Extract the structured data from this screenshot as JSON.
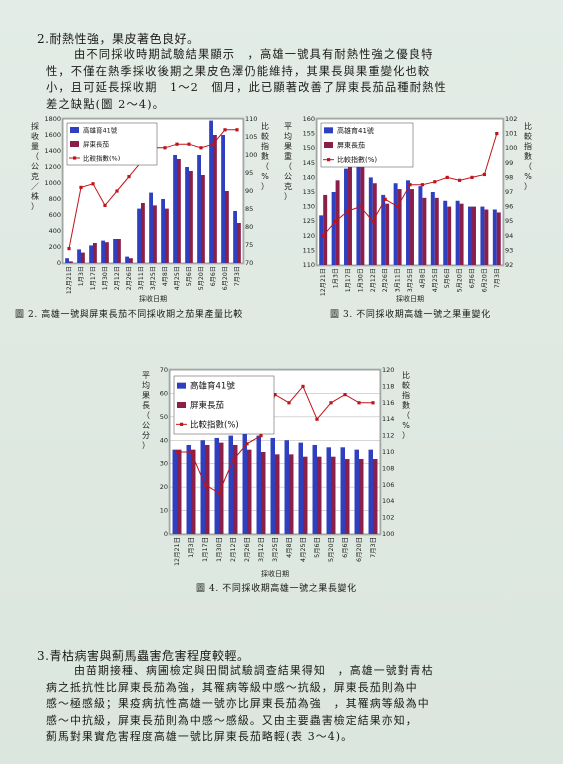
{
  "section1": {
    "heading": "2.耐熱性強，果皮著色良好。",
    "lines": [
      "由不同採收時期試驗結果顯示　，高雄一號具有耐熱性強之優良特",
      "性，不僅在熱季採收後期之果皮色澤仍能維持，其果長與果重變化也較",
      "小，且可延長採收期　1～2　個月，此已顯著改善了屏東長茄品種耐熱性",
      "差之缺點(圖 2～4)。"
    ]
  },
  "captions": {
    "fig2": "圖 2. 高雄一號與屏東長茄不同採收期之茄果產量比較",
    "fig3": "圖 3.  不同採收期高雄一號之果重變化",
    "fig4": "圖 4.  不同採收期高雄一號之果長變化"
  },
  "section2": {
    "heading": "3.青枯病害與薊馬蟲害危害程度較輕。",
    "lines": [
      "由苗期接種、病圃檢定與田間試驗調查結果得知　，高雄一號對青枯",
      "病之抵抗性比屏東長茄為強，其罹病等級中感～抗級，屏東長茄則為中",
      "感～極感級；果疫病抗性高雄一號亦比屏東長茄為強　，其罹病等級為中",
      "感～中抗級，屏東長茄則為中感～感級。又由主要蟲害檢定結果亦知，",
      "薊馬對果實危害程度高雄一號比屏東長茄略輕(表 3～4)。"
    ]
  },
  "colors": {
    "kaohsiung": "#2e3fbf",
    "pingtung": "#8a1f4a",
    "index": "#c0141a",
    "frame": "#c9d3cc"
  },
  "chart_data": [
    {
      "type": "bar",
      "id": "fig2",
      "categories": [
        "12月21日",
        "1月3日",
        "1月17日",
        "1月30日",
        "2月12日",
        "2月26日",
        "3月11日",
        "3月25日",
        "4月8日",
        "4月25日",
        "5月6日",
        "5月20日",
        "6月6日",
        "6月20日",
        "7月3日"
      ],
      "series": [
        {
          "name": "高雄育41號",
          "values": [
            60,
            170,
            220,
            280,
            300,
            80,
            680,
            880,
            800,
            1350,
            1200,
            1350,
            1780,
            1600,
            650
          ]
        },
        {
          "name": "屏東長茄",
          "values": [
            20,
            130,
            250,
            260,
            300,
            60,
            750,
            720,
            680,
            1300,
            1150,
            1100,
            1600,
            900,
            500
          ]
        },
        {
          "name": "比較指數(%)",
          "values": [
            74,
            91,
            92,
            86,
            90,
            94,
            98,
            102,
            102,
            103,
            103,
            102,
            103,
            107,
            107
          ]
        }
      ],
      "ylabel": "採收量（公克／株）",
      "y2label": "比較指數（%）",
      "xlabel": "採收日期",
      "ylim": [
        0,
        1800
      ],
      "y2lim": [
        70,
        110
      ],
      "yticks": [
        "0",
        "200",
        "400",
        "600",
        "800",
        "1000",
        "1200",
        "1400",
        "1600",
        "1800"
      ],
      "y2ticks": [
        "70",
        "75",
        "80",
        "85",
        "90",
        "95",
        "100",
        "105",
        "110"
      ]
    },
    {
      "type": "bar",
      "id": "fig3",
      "categories": [
        "12月21日",
        "1月3日",
        "1月17日",
        "1月30日",
        "2月12日",
        "2月26日",
        "3月11日",
        "3月25日",
        "4月8日",
        "4月25日",
        "5月6日",
        "5月20日",
        "6月6日",
        "6月20日",
        "7月3日"
      ],
      "series": [
        {
          "name": "高雄育41號",
          "values": [
            127,
            135,
            143,
            144,
            140,
            134,
            138,
            139,
            137,
            135,
            132,
            132,
            130,
            130,
            129
          ]
        },
        {
          "name": "屏東長茄",
          "values": [
            134,
            139,
            144,
            145,
            138,
            131,
            136,
            136,
            133,
            133,
            130,
            131,
            130,
            129,
            128
          ]
        },
        {
          "name": "比較指數(%)",
          "values": [
            94,
            95,
            95.7,
            96,
            95,
            96.5,
            96,
            97.5,
            97.5,
            97.7,
            98,
            97.8,
            98,
            98.2,
            101
          ]
        }
      ],
      "ylabel": "平均果重（公克）",
      "y2label": "比較指數（%）",
      "xlabel": "採收日期",
      "ylim": [
        110,
        160
      ],
      "y2lim": [
        92,
        102
      ],
      "yticks": [
        "110",
        "115",
        "120",
        "125",
        "130",
        "135",
        "140",
        "145",
        "150",
        "155",
        "160"
      ],
      "y2ticks": [
        "92",
        "93",
        "94",
        "95",
        "96",
        "97",
        "98",
        "99",
        "100",
        "101",
        "102"
      ]
    },
    {
      "type": "bar",
      "id": "fig4",
      "categories": [
        "12月21日",
        "1月3日",
        "1月17日",
        "1月30日",
        "2月12日",
        "2月26日",
        "3月12日",
        "3月25日",
        "4月8日",
        "4月25日",
        "5月6日",
        "5月20日",
        "6月6日",
        "6月20日",
        "7月3日"
      ],
      "series": [
        {
          "name": "高雄育41號",
          "values": [
            36,
            38,
            40,
            41,
            42,
            43,
            42,
            41,
            40,
            39,
            38,
            37,
            37,
            36,
            36
          ]
        },
        {
          "name": "屏東長茄",
          "values": [
            36,
            36,
            38,
            39,
            38,
            36,
            35,
            34,
            34,
            33,
            33,
            33,
            32,
            32,
            32
          ]
        },
        {
          "name": "比較指數(%)",
          "values": [
            110,
            110,
            106,
            105,
            109,
            111,
            112,
            117,
            116,
            118,
            114,
            116,
            117,
            116,
            116
          ]
        }
      ],
      "ylabel": "平均果長（公分）",
      "y2label": "比較指數（%）",
      "xlabel": "採收日期",
      "ylim": [
        0,
        70
      ],
      "y2lim": [
        100,
        120
      ],
      "yticks": [
        "0",
        "10",
        "20",
        "30",
        "40",
        "50",
        "60",
        "70"
      ],
      "y2ticks": [
        "100",
        "102",
        "104",
        "106",
        "108",
        "110",
        "112",
        "114",
        "116",
        "118",
        "120"
      ]
    }
  ]
}
